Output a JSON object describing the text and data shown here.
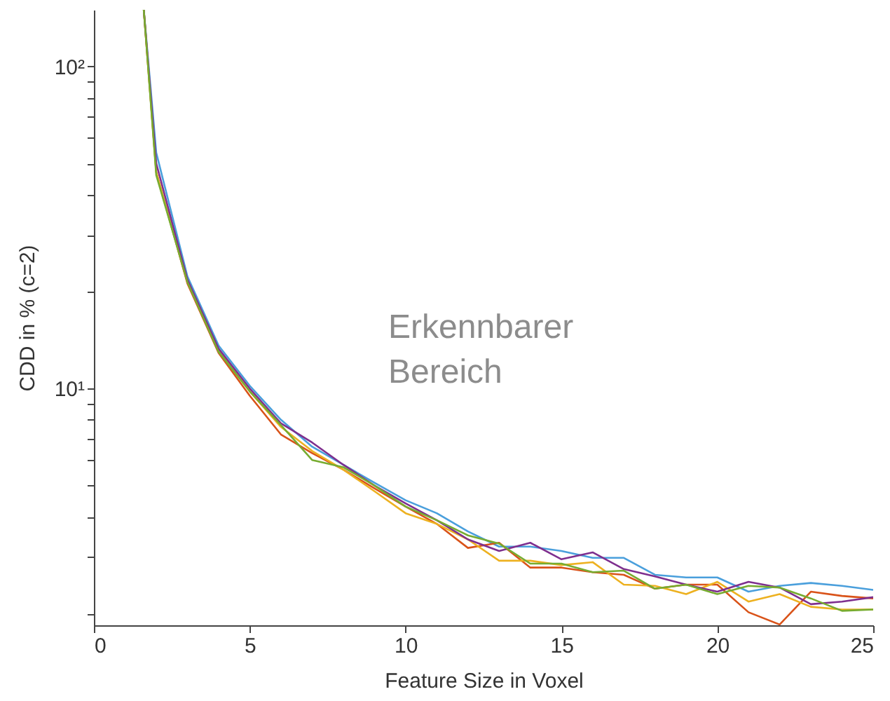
{
  "chart_data": {
    "type": "line",
    "xlabel": "Feature Size in Voxel",
    "ylabel": "CDD in % (c=2)",
    "annotations": [
      "Erkennbarer Bereich"
    ],
    "x": [
      1.6,
      2,
      3,
      4,
      5,
      6,
      7,
      8,
      9,
      10,
      11,
      12,
      13,
      14,
      15,
      16,
      17,
      18,
      19,
      20,
      21,
      22,
      23,
      24,
      25
    ],
    "series": [
      {
        "color": "#4a9fdc",
        "values": [
          150,
          54,
          22.3,
          13.6,
          10.2,
          8.0,
          6.6,
          5.8,
          5.1,
          4.5,
          4.1,
          3.6,
          3.23,
          3.23,
          3.13,
          2.98,
          2.98,
          2.64,
          2.59,
          2.59,
          2.34,
          2.44,
          2.49,
          2.44,
          2.37
        ]
      },
      {
        "color": "#d95319",
        "values": [
          150,
          47,
          21.2,
          12.9,
          9.5,
          7.2,
          6.3,
          5.6,
          4.9,
          4.3,
          3.8,
          3.2,
          3.32,
          2.78,
          2.78,
          2.69,
          2.64,
          2.39,
          2.46,
          2.46,
          2.02,
          1.85,
          2.34,
          2.27,
          2.23
        ]
      },
      {
        "color": "#edb120",
        "values": [
          150,
          47,
          21.5,
          13.1,
          9.8,
          7.6,
          6.4,
          5.6,
          4.8,
          4.1,
          3.8,
          3.4,
          2.92,
          2.92,
          2.83,
          2.89,
          2.46,
          2.44,
          2.3,
          2.51,
          2.18,
          2.3,
          2.1,
          2.06,
          2.06
        ]
      },
      {
        "color": "#7e2f8e",
        "values": [
          150,
          50,
          21.8,
          13.3,
          10.0,
          7.8,
          6.8,
          5.8,
          5.0,
          4.4,
          3.9,
          3.4,
          3.13,
          3.32,
          2.95,
          3.1,
          2.75,
          2.61,
          2.46,
          2.34,
          2.51,
          2.41,
          2.14,
          2.18,
          2.25
        ]
      },
      {
        "color": "#77ac30",
        "values": [
          150,
          46,
          21.4,
          13.0,
          9.8,
          7.7,
          6.0,
          5.7,
          5.0,
          4.3,
          3.9,
          3.5,
          3.3,
          2.86,
          2.86,
          2.69,
          2.72,
          2.39,
          2.46,
          2.3,
          2.44,
          2.41,
          2.23,
          2.04,
          2.06
        ]
      }
    ],
    "log": "y",
    "grid": false,
    "line_style": "solid",
    "marker": "none",
    "xlim": [
      0,
      25
    ],
    "xticks": [
      0,
      5,
      10,
      15,
      20,
      25
    ],
    "ylim": [
      1.84,
      150
    ],
    "yticks": [
      {
        "value": 2,
        "label": null
      },
      {
        "value": 3,
        "label": null
      },
      {
        "value": 4,
        "label": null
      },
      {
        "value": 5,
        "label": null
      },
      {
        "value": 6,
        "label": null
      },
      {
        "value": 7,
        "label": null
      },
      {
        "value": 8,
        "label": null
      },
      {
        "value": 9,
        "label": null
      },
      {
        "value": 10,
        "label": "10¹"
      },
      {
        "value": 20,
        "label": null
      },
      {
        "value": 30,
        "label": null
      },
      {
        "value": 40,
        "label": null
      },
      {
        "value": 50,
        "label": null
      },
      {
        "value": 60,
        "label": null
      },
      {
        "value": 70,
        "label": null
      },
      {
        "value": 80,
        "label": null
      },
      {
        "value": 90,
        "label": null
      },
      {
        "value": 100,
        "label": "10²"
      }
    ]
  }
}
